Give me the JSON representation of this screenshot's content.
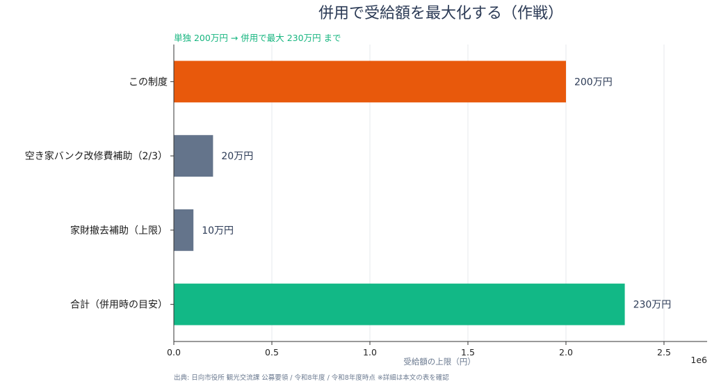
{
  "chart_data": {
    "type": "bar",
    "orientation": "horizontal",
    "title": "併用で受給額を最大化する（作戦）",
    "subtitle": "単独 200万円 → 併用で最大 230万円 まで",
    "categories": [
      "この制度",
      "空き家バンク改修費補助（2/3）",
      "家財撤去補助（上限）",
      "合計（併用時の目安）"
    ],
    "values": [
      2000000,
      200000,
      100000,
      2300000
    ],
    "value_labels": [
      "200万円",
      "20万円",
      "10万円",
      "230万円"
    ],
    "bar_colors": [
      "#e8590c",
      "#64748b",
      "#64748b",
      "#12b886"
    ],
    "xlabel": "受給額の上限（円）",
    "xlim": [
      0,
      2720000
    ],
    "xticks": [
      0,
      500000,
      1000000,
      1500000,
      2000000,
      2500000
    ],
    "xtick_labels": [
      "0.0",
      "0.5",
      "1.0",
      "1.5",
      "2.0",
      "2.5"
    ],
    "x_offset_label": "1e6",
    "grid": "x",
    "source": "出典: 日向市役所 観光交流課 公募要領 / 令和8年度 / 令和8年度時点 ※詳細は本文の表を確認"
  }
}
